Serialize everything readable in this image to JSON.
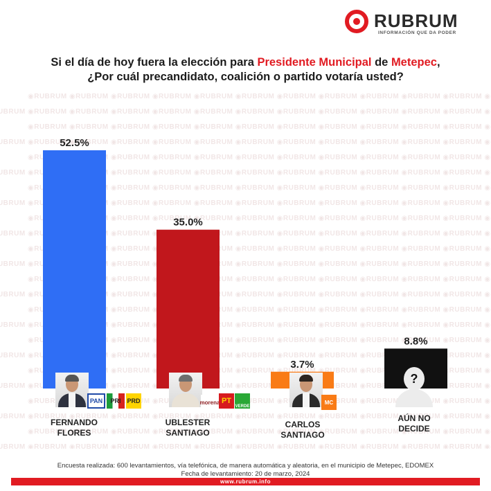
{
  "brand": {
    "name": "RUBRUM",
    "tagline": "INFORMACIÓN QUE DA PODER",
    "watermark": "RUBRUM",
    "website": "www.rubrum.info",
    "red": "#e11b22"
  },
  "question": {
    "line1_pre": "Si el día de hoy fuera la elección para ",
    "line1_office": "Presidente Municipal",
    "line1_mid": " de ",
    "line1_place": "Metepec",
    "line1_end": ",",
    "line2": "¿Por cuál precandidato, coalición o partido votaría usted?"
  },
  "chart_data": {
    "type": "bar",
    "categories": [
      "FERNANDO FLORES",
      "UBLESTER SANTIAGO",
      "CARLOS SANTIAGO",
      "AÚN NO DECIDE"
    ],
    "values": [
      52.5,
      35.0,
      3.7,
      8.8
    ],
    "value_labels": [
      "52.5%",
      "35.0%",
      "3.7%",
      "8.8%"
    ],
    "colors": [
      "#2f6ef5",
      "#c1171c",
      "#f97b16",
      "#111111"
    ],
    "ylim": [
      0,
      52.5
    ],
    "title": "",
    "xlabel": "",
    "ylabel": ""
  },
  "candidates": [
    {
      "line1": "FERNANDO",
      "line2": "FLORES",
      "party_logos": [
        "PAN",
        "PRI",
        "PRD"
      ]
    },
    {
      "line1": "UBLESTER",
      "line2": "SANTIAGO",
      "party_logos": [
        "morena",
        "PT",
        "VERDE"
      ]
    },
    {
      "line1": "CARLOS",
      "line2": "SANTIAGO",
      "party_logos": [
        "MC"
      ]
    },
    {
      "line1": "AÚN NO",
      "line2": "DECIDE",
      "unknown_symbol": "?"
    }
  ],
  "footnote": {
    "line1": "Encuesta realizada: 600 levantamientos, vía telefónica, de manera automática y aleatoria, en el municipio de Metepec, EDOMEX",
    "line2": "Fecha de levantamiento: 20 de marzo, 2024"
  }
}
